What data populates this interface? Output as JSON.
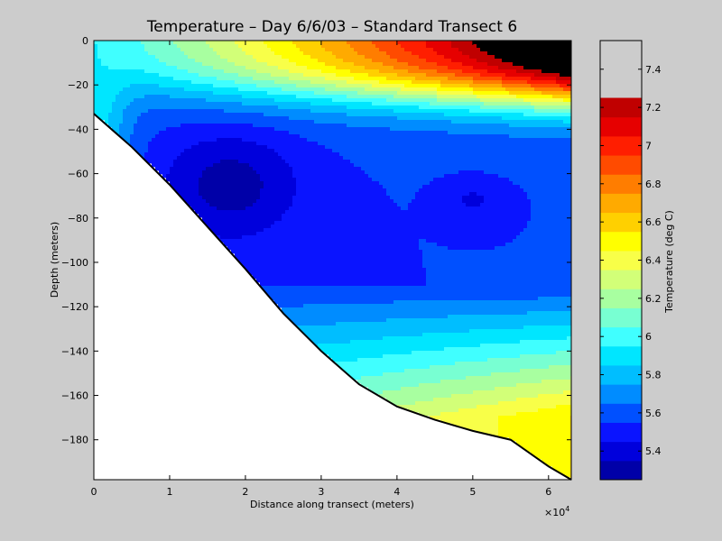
{
  "chart_data": {
    "type": "contour",
    "title": "Temperature – Day 6/6/03 – Standard Transect 6",
    "xlabel": "Distance along transect (meters)",
    "ylabel": "Depth (meters)",
    "x_multiplier": "×10",
    "x_multiplier_exp": "4",
    "xlim": [
      0,
      6.3
    ],
    "ylim": [
      -198,
      0
    ],
    "x_ticks": [
      "0",
      "1",
      "2",
      "3",
      "4",
      "5",
      "6"
    ],
    "y_ticks": [
      "0",
      "−20",
      "−40",
      "−60",
      "−80",
      "−100",
      "−120",
      "−140",
      "−160",
      "−180"
    ],
    "bottom_profile": {
      "x": [
        0,
        0.5,
        1.0,
        1.5,
        2.0,
        2.5,
        3.0,
        3.5,
        4.0,
        4.5,
        5.0,
        5.5,
        6.0,
        6.3
      ],
      "depth": [
        -33,
        -48,
        -65,
        -84,
        -103,
        -123,
        -140,
        -155,
        -165,
        -171,
        -176,
        -180,
        -192,
        -198
      ]
    },
    "colorbar": {
      "label": "Temperature (deg C)",
      "min": 5.25,
      "max": 7.55,
      "ticks": [
        "5.4",
        "5.6",
        "5.8",
        "6",
        "6.2",
        "6.4",
        "6.6",
        "6.8",
        "7",
        "7.2",
        "7.4"
      ],
      "tick_values": [
        5.4,
        5.6,
        5.8,
        6.0,
        6.2,
        6.4,
        6.6,
        6.8,
        7.0,
        7.2,
        7.4
      ],
      "levels": [
        5.35,
        5.45,
        5.55,
        5.65,
        5.75,
        5.85,
        5.95,
        6.05,
        6.15,
        6.25,
        6.35,
        6.45,
        6.55,
        6.65,
        6.75,
        6.85,
        6.95,
        7.05,
        7.15,
        7.25,
        7.35,
        7.45
      ],
      "colors": [
        "#0000a8",
        "#0000dc",
        "#0a14ff",
        "#0050ff",
        "#008cff",
        "#00beff",
        "#00e6ff",
        "#40ffff",
        "#78ffd2",
        "#a8ffa0",
        "#d2ff78",
        "#f8ff48",
        "#ffff00",
        "#ffd000",
        "#ffaa00",
        "#ff7d00",
        "#ff4b00",
        "#ff1e00",
        "#e60000",
        "#c00000"
      ]
    }
  }
}
